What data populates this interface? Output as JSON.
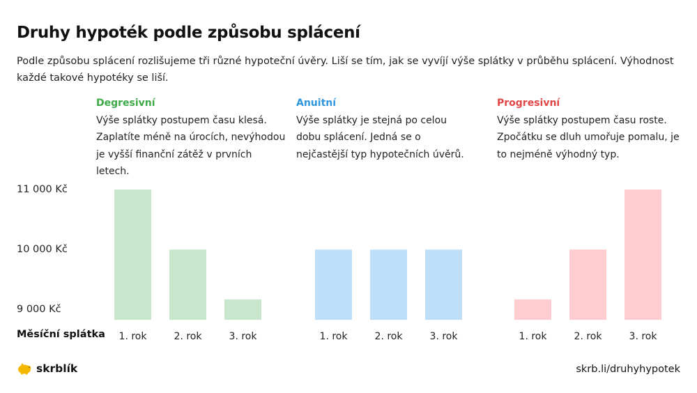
{
  "title": "Druhy hypoték podle způsobu splácení",
  "intro": "Podle způsobu splácení rozlišujeme tři různé hypoteční úvěry. Liší se tím, jak se vyvíjí výše splátky v průběhu splácení. Výhodnost každé takové hypotéky se liší.",
  "columns": [
    {
      "title": "Degresivní",
      "color": "#3caa46",
      "text": "Výše splátky postupem času klesá. Zaplatíte méně na úrocích, nevýhodou je vyšší finanční zátěž v prvních letech."
    },
    {
      "title": "Anuitní",
      "color": "#2e96dc",
      "text": "Výše splátky je stejná po celou dobu splácení. Jedná se o nejčastější typ hypotečních úvěrů."
    },
    {
      "title": "Progresivní",
      "color": "#e04646",
      "text": "Výše splátky postupem času roste. Zpočátku se dluh umořuje pomalu, je to nejméně výhodný typ."
    }
  ],
  "row_label": "Měsíční splátka",
  "brand": "skrblík",
  "url": "skrb.li/druhyhypotek",
  "chart_data": {
    "type": "bar",
    "categories": [
      "1. rok",
      "2. rok",
      "3. rok"
    ],
    "yticks": [
      {
        "value": 9000,
        "label": "9 000 Kč"
      },
      {
        "value": 10000,
        "label": "10 000 Kč"
      },
      {
        "value": 11000,
        "label": "11 000 Kč"
      }
    ],
    "ylim": [
      8830,
      11000
    ],
    "grid": false,
    "series": [
      {
        "name": "Degresivní",
        "values": [
          11000,
          10000,
          9170
        ],
        "color": "#c8e6cb"
      },
      {
        "name": "Anuitní",
        "values": [
          10000,
          10000,
          10000
        ],
        "color": "#bfdff8"
      },
      {
        "name": "Progresivní",
        "values": [
          9170,
          10000,
          11000
        ],
        "color": "#ffccd0"
      }
    ]
  }
}
